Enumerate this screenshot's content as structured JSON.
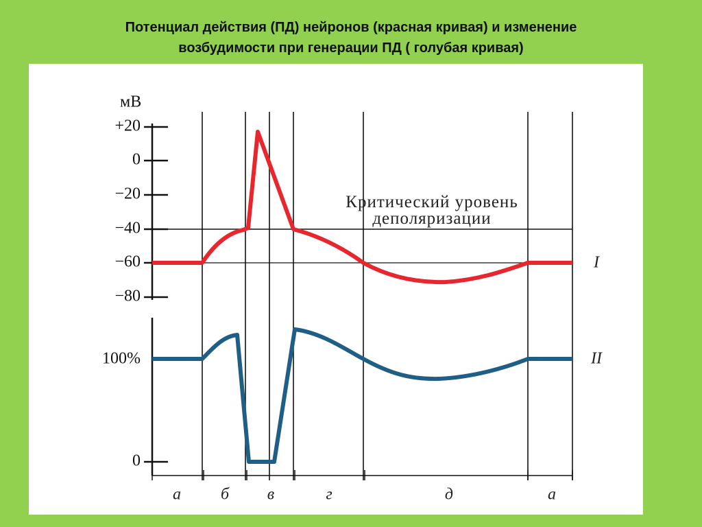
{
  "header": {
    "title_lines": [
      "Потенциал действия (ПД) нейронов (красная кривая)  и изменение",
      "возбудимости при генерации  ПД ( голубая  кривая)"
    ]
  },
  "diagram": {
    "unit": "мВ",
    "mv_labels": [
      "+20",
      "0",
      "−20",
      "−40",
      "−60",
      "−80"
    ],
    "excitability_labels": [
      "100%",
      "0"
    ],
    "threshold_label_lines": [
      "Критический уровень",
      "деполяризации"
    ],
    "curve_labels": [
      "I",
      "II"
    ],
    "phase_labels": [
      "а",
      "б",
      "в",
      "г",
      "д",
      "а"
    ]
  }
}
